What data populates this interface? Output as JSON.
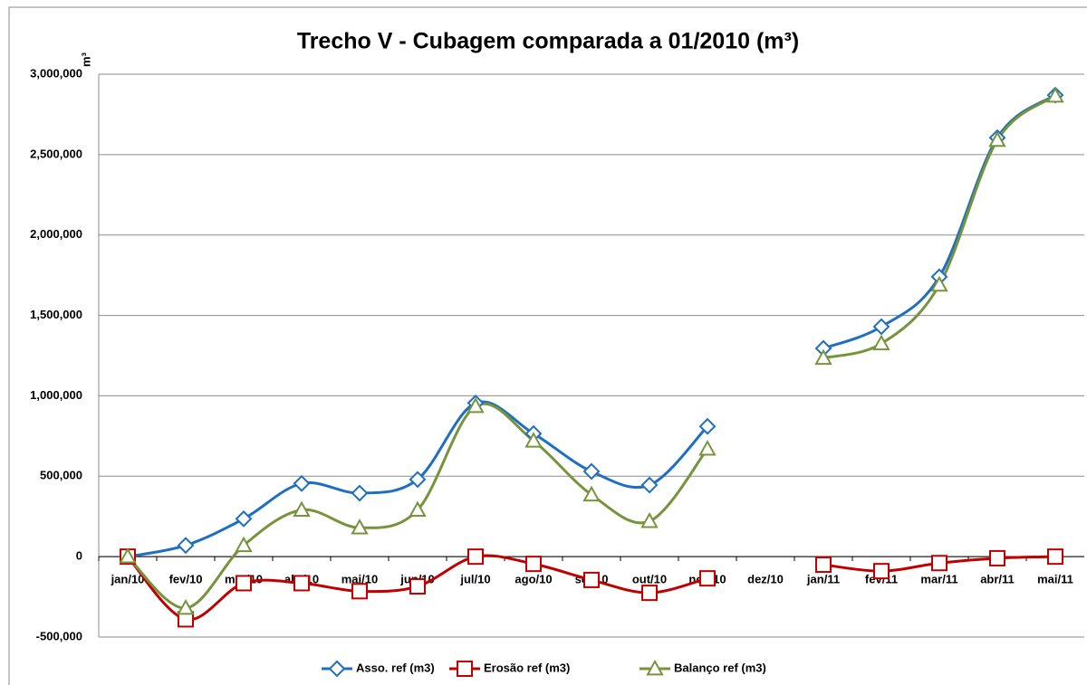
{
  "chart_data": {
    "type": "line",
    "title": "Trecho V - Cubagem comparada a 01/2010 (m³)",
    "y_label": "m³",
    "categories": [
      "jan/10",
      "fev/10",
      "mar/10",
      "abr/10",
      "mai/10",
      "jun/10",
      "jul/10",
      "ago/10",
      "set/10",
      "out/10",
      "nov/10",
      "dez/10",
      "jan/11",
      "fev/11",
      "mar/11",
      "abr/11",
      "mai/11"
    ],
    "series": [
      {
        "name": "Asso. ref (m3)",
        "color": "#1f6fc0",
        "marker": "diamond",
        "values": [
          0,
          70000,
          235000,
          455000,
          395000,
          480000,
          955000,
          765000,
          530000,
          445000,
          810000,
          null,
          1295000,
          1430000,
          1740000,
          2605000,
          2870000
        ]
      },
      {
        "name": "Erosão ref (m3)",
        "color": "#c00000",
        "marker": "square",
        "values": [
          0,
          -390000,
          -165000,
          -165000,
          -215000,
          -185000,
          0,
          -45000,
          -145000,
          -225000,
          -135000,
          null,
          -50000,
          -90000,
          -40000,
          -10000,
          0
        ]
      },
      {
        "name": "Balanço ref (m3)",
        "color": "#77933c",
        "marker": "triangle",
        "values": [
          0,
          -320000,
          70000,
          290000,
          180000,
          290000,
          935000,
          720000,
          385000,
          220000,
          670000,
          null,
          1235000,
          1325000,
          1690000,
          2590000,
          2865000
        ]
      }
    ],
    "ylim": [
      -500000,
      3000000
    ],
    "yticks": [
      {
        "value": -500000,
        "label": "-500,000"
      },
      0,
      {
        "value": 500000,
        "label": "500,000"
      },
      {
        "value": 1000000,
        "label": "1,000,000"
      },
      {
        "value": 1500000,
        "label": "1,500,000"
      },
      {
        "value": 2000000,
        "label": "2,000,000"
      },
      {
        "value": 2500000,
        "label": "2,500,000"
      },
      {
        "value": 3000000,
        "label": "3,000,000"
      }
    ],
    "grid": true,
    "legend": "bottom"
  }
}
